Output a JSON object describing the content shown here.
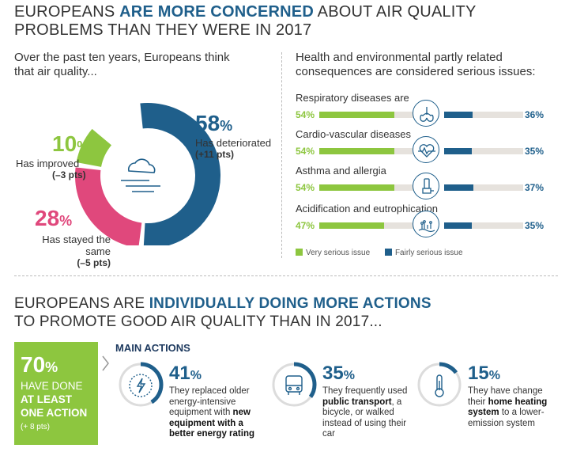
{
  "header": {
    "t1a": "EUROPEANS ",
    "t1b": "ARE MORE CONCERNED",
    "t1c": " ABOUT AIR QUALITY PROBLEMS THAN THEY WERE IN 2017"
  },
  "donut": {
    "intro": "Over the past ten years, Europeans think that air quality...",
    "segments": [
      {
        "pct": "58",
        "label": "Has deteriorated",
        "change": "(+11 pts)",
        "value": 58,
        "color": "#1f5f8b"
      },
      {
        "pct": "28",
        "label": "Has stayed the same",
        "change": "(–5 pts)",
        "value": 28,
        "color": "#e0487c"
      },
      {
        "pct": "10",
        "label": "Has improved",
        "change": "(–3 pts)",
        "value": 10,
        "color": "#8dc63f"
      }
    ],
    "pct_sign": "%"
  },
  "chart_data": {
    "type": "bar",
    "title": "Health and environmental partly related consequences are considered serious issues:",
    "categories": [
      "Respiratory diseases are",
      "Cardio-vascular diseases",
      "Asthma and allergia",
      "Acidification and eutrophication"
    ],
    "series": [
      {
        "name": "Very serious issue",
        "values": [
          54,
          54,
          54,
          47
        ],
        "color": "#8dc63f"
      },
      {
        "name": "Fairly serious issue",
        "values": [
          36,
          35,
          37,
          35
        ],
        "color": "#1f5f8b"
      }
    ],
    "value_labels_1": [
      "54%",
      "54%",
      "54%",
      "47%"
    ],
    "value_labels_2": [
      "36%",
      "35%",
      "37%",
      "35%"
    ],
    "icons": [
      "lungs-icon",
      "heart-icon",
      "inhaler-icon",
      "water-plant-icon"
    ],
    "ylim": [
      0,
      100
    ],
    "legend": "bottom"
  },
  "section2": {
    "t2a": "EUROPEANS ARE ",
    "t2b": "INDIVIDUALLY DOING MORE ACTIONS",
    "t2c": "TO PROMOTE GOOD AIR QUALITY THAN IN 2017...",
    "box_pct": "70",
    "box_line1": "HAVE DONE",
    "box_line2": "AT LEAST",
    "box_line3": "ONE ACTION",
    "box_change": "(+ 8 pts)",
    "main_actions": "MAIN ACTIONS",
    "actions": [
      {
        "pct": "41",
        "value": 41,
        "t1": "They replaced older energy-intensive equipment with ",
        "b1": "new equipment with a better energy rating",
        "t2": "",
        "icon": "energy-equipment-icon"
      },
      {
        "pct": "35",
        "value": 35,
        "t1": "They frequently used ",
        "b1": "public transport",
        "t2": ", a bicycle, or walked instead of using their car",
        "icon": "bus-icon"
      },
      {
        "pct": "15",
        "value": 15,
        "t1": "They have change their ",
        "b1": "home heating system",
        "t2": " to a lower-emission system",
        "icon": "thermometer-icon"
      }
    ]
  }
}
